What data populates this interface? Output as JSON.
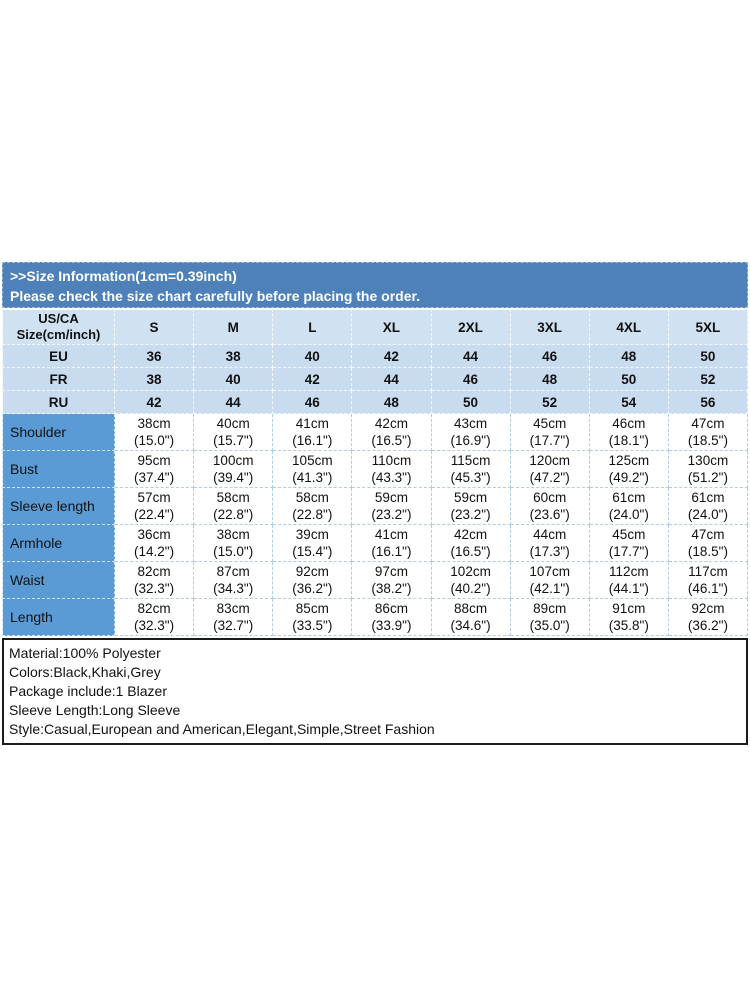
{
  "banner": {
    "line1": ">>Size Information(1cm=0.39inch)",
    "line2": "Please check the size chart carefully before placing the order."
  },
  "size_table": {
    "corner_line1": "US/CA",
    "corner_line2": "Size(cm/inch)",
    "size_labels": [
      "S",
      "M",
      "L",
      "XL",
      "2XL",
      "3XL",
      "4XL",
      "5XL"
    ],
    "region_rows": [
      {
        "label": "EU",
        "values": [
          "36",
          "38",
          "40",
          "42",
          "44",
          "46",
          "48",
          "50"
        ]
      },
      {
        "label": "FR",
        "values": [
          "38",
          "40",
          "42",
          "44",
          "46",
          "48",
          "50",
          "52"
        ]
      },
      {
        "label": "RU",
        "values": [
          "42",
          "44",
          "46",
          "48",
          "50",
          "52",
          "54",
          "56"
        ]
      }
    ],
    "measurement_rows": [
      {
        "label": "Shoulder",
        "cm": [
          "38cm",
          "40cm",
          "41cm",
          "42cm",
          "43cm",
          "45cm",
          "46cm",
          "47cm"
        ],
        "inch": [
          "(15.0\")",
          "(15.7\")",
          "(16.1\")",
          "(16.5\")",
          "(16.9\")",
          "(17.7\")",
          "(18.1\")",
          "(18.5\")"
        ]
      },
      {
        "label": "Bust",
        "cm": [
          "95cm",
          "100cm",
          "105cm",
          "110cm",
          "115cm",
          "120cm",
          "125cm",
          "130cm"
        ],
        "inch": [
          "(37.4\")",
          "(39.4\")",
          "(41.3\")",
          "(43.3\")",
          "(45.3\")",
          "(47.2\")",
          "(49.2\")",
          "(51.2\")"
        ]
      },
      {
        "label": "Sleeve length",
        "cm": [
          "57cm",
          "58cm",
          "58cm",
          "59cm",
          "59cm",
          "60cm",
          "61cm",
          "61cm"
        ],
        "inch": [
          "(22.4\")",
          "(22.8\")",
          "(22.8\")",
          "(23.2\")",
          "(23.2\")",
          "(23.6\")",
          "(24.0\")",
          "(24.0\")"
        ]
      },
      {
        "label": "Armhole",
        "cm": [
          "36cm",
          "38cm",
          "39cm",
          "41cm",
          "42cm",
          "44cm",
          "45cm",
          "47cm"
        ],
        "inch": [
          "(14.2\")",
          "(15.0\")",
          "(15.4\")",
          "(16.1\")",
          "(16.5\")",
          "(17.3\")",
          "(17.7\")",
          "(18.5\")"
        ]
      },
      {
        "label": "Waist",
        "cm": [
          "82cm",
          "87cm",
          "92cm",
          "97cm",
          "102cm",
          "107cm",
          "112cm",
          "117cm"
        ],
        "inch": [
          "(32.3\")",
          "(34.3\")",
          "(36.2\")",
          "(38.2\")",
          "(40.2\")",
          "(42.1\")",
          "(44.1\")",
          "(46.1\")"
        ]
      },
      {
        "label": "Length",
        "cm": [
          "82cm",
          "83cm",
          "85cm",
          "86cm",
          "88cm",
          "89cm",
          "91cm",
          "92cm"
        ],
        "inch": [
          "(32.3\")",
          "(32.7\")",
          "(33.5\")",
          "(33.9\")",
          "(34.6\")",
          "(35.0\")",
          "(35.8\")",
          "(36.2\")"
        ]
      }
    ]
  },
  "details": {
    "lines": [
      "Material:100% Polyester",
      "Colors:Black,Khaki,Grey",
      "Package include:1 Blazer",
      "Sleeve Length:Long Sleeve",
      "Style:Casual,European and American,Elegant,Simple,Street Fashion"
    ]
  },
  "colors": {
    "banner_blue": "#4e81ba",
    "header_bg": "#d0e1f2",
    "region_bg": "#c9dcef",
    "label_blue": "#5b9bd5",
    "details_border": "#1b1b1b"
  }
}
